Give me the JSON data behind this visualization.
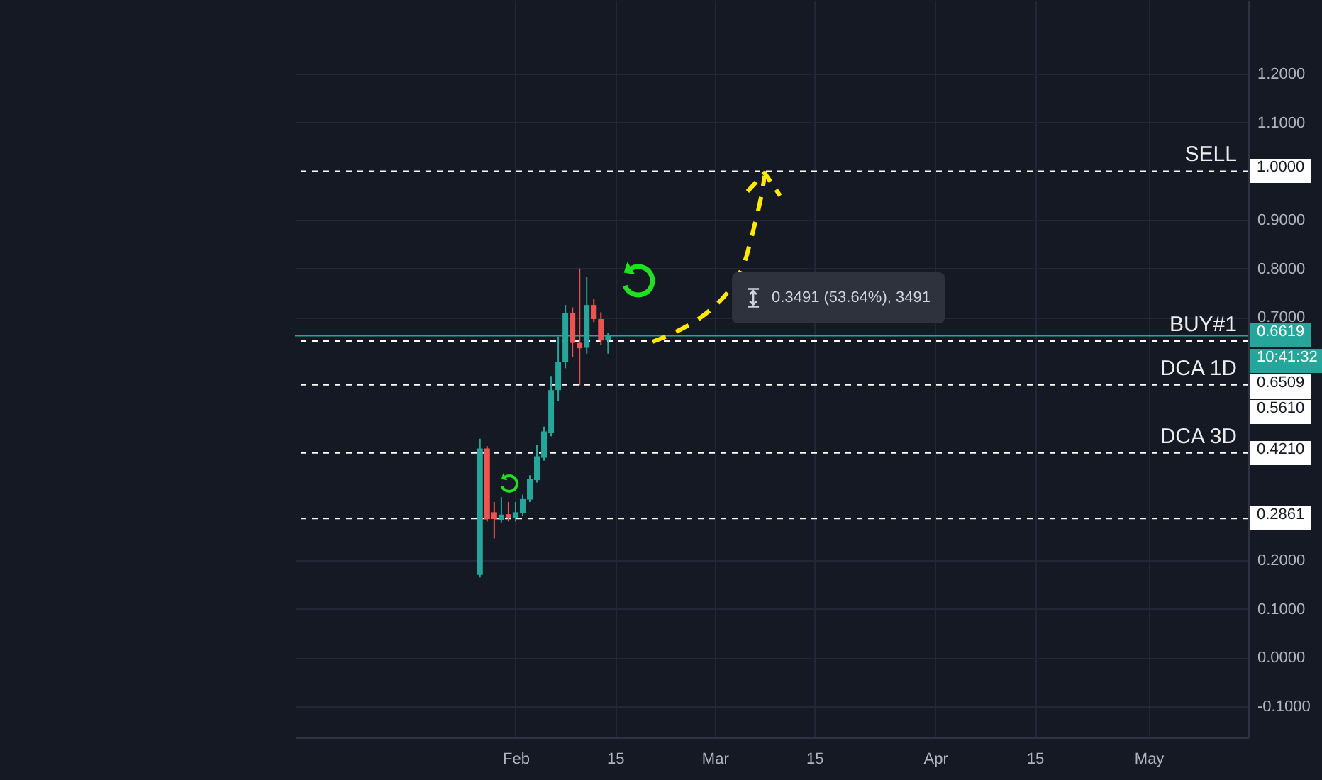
{
  "chart_data": {
    "type": "candlestick",
    "x": [
      "--01-27",
      "--01-28",
      "--01-29",
      "--01-30",
      "--01-31",
      "--02-01",
      "--02-02",
      "--02-03",
      "--02-04",
      "--02-05",
      "--02-06",
      "--02-07",
      "--02-08",
      "--02-09",
      "--02-10",
      "--02-11",
      "--02-12",
      "--02-13",
      "--02-14"
    ],
    "ohlc": [
      [
        0.17,
        0.45,
        0.165,
        0.43
      ],
      [
        0.43,
        0.435,
        0.28,
        0.285
      ],
      [
        0.299,
        0.32,
        0.245,
        0.285
      ],
      [
        0.283,
        0.33,
        0.278,
        0.294
      ],
      [
        0.295,
        0.32,
        0.28,
        0.287
      ],
      [
        0.287,
        0.32,
        0.28,
        0.299
      ],
      [
        0.297,
        0.335,
        0.292,
        0.326
      ],
      [
        0.325,
        0.375,
        0.32,
        0.368
      ],
      [
        0.365,
        0.438,
        0.36,
        0.414
      ],
      [
        0.411,
        0.475,
        0.405,
        0.465
      ],
      [
        0.462,
        0.579,
        0.455,
        0.55
      ],
      [
        0.55,
        0.66,
        0.527,
        0.608
      ],
      [
        0.608,
        0.725,
        0.595,
        0.708
      ],
      [
        0.708,
        0.72,
        0.618,
        0.647
      ],
      [
        0.647,
        0.8,
        0.56,
        0.636
      ],
      [
        0.637,
        0.783,
        0.625,
        0.725
      ],
      [
        0.725,
        0.737,
        0.69,
        0.696
      ],
      [
        0.696,
        0.71,
        0.642,
        0.652
      ],
      [
        0.652,
        0.668,
        0.625,
        0.6619
      ]
    ],
    "colors": [
      "#26a69a",
      "#ef5350",
      "#ef5350",
      "#26a69a",
      "#ef5350",
      "#26a69a",
      "#26a69a",
      "#26a69a",
      "#26a69a",
      "#26a69a",
      "#26a69a",
      "#26a69a",
      "#26a69a",
      "#ef5350",
      "#ef5350",
      "#26a69a",
      "#ef5350",
      "#ef5350",
      "#26a69a"
    ],
    "xlim": [
      "--01-01",
      "--05-15"
    ],
    "xticks": [
      {
        "value": "--02-01",
        "label": "Feb"
      },
      {
        "value": "--02-15",
        "label": "15"
      },
      {
        "value": "--03-01",
        "label": "Mar"
      },
      {
        "value": "--03-15",
        "label": "15"
      },
      {
        "value": "--04-01",
        "label": "Apr"
      },
      {
        "value": "--04-15",
        "label": "15"
      },
      {
        "value": "--05-01",
        "label": "May"
      }
    ],
    "ylim": [
      -0.164,
      1.352
    ],
    "yticks": [
      {
        "value": -0.1,
        "label": "-0.1000"
      },
      {
        "value": 0,
        "label": "0.0000"
      },
      {
        "value": 0.1,
        "label": "0.1000"
      },
      {
        "value": 0.2,
        "label": "0.2000"
      },
      {
        "value": 0.7,
        "label": "0.7000"
      },
      {
        "value": 0.8,
        "label": "0.8000"
      },
      {
        "value": 0.9,
        "label": "0.9000"
      },
      {
        "value": 1.1,
        "label": "1.1000"
      },
      {
        "value": 1.2,
        "label": "1.2000"
      }
    ],
    "grid": true,
    "ref_lines": [
      {
        "axis": "y",
        "value": 1,
        "label": "SELL",
        "color": "#ffffff",
        "line_style": "dashed"
      },
      {
        "axis": "y",
        "value": 0.6619,
        "color": "#26a69a",
        "line_style": "solid"
      },
      {
        "axis": "y",
        "value": 0.6509,
        "label": "BUY#1",
        "color": "#ffffff",
        "line_style": "dashed"
      },
      {
        "axis": "y",
        "value": 0.561,
        "label": "DCA 1D",
        "color": "#ffffff",
        "line_style": "dashed"
      },
      {
        "axis": "y",
        "value": 0.421,
        "label": "DCA 3D",
        "color": "#ffffff",
        "line_style": "dashed"
      },
      {
        "axis": "y",
        "value": 0.2861,
        "color": "#ffffff",
        "line_style": "dashed"
      }
    ],
    "annotations": [
      "0.3491 (53.64%), 3491",
      {
        "text": "1.0000",
        "x": "--05-15",
        "y": 1
      },
      {
        "text": "0.6619",
        "x": "--05-15",
        "y": 0.6619
      },
      {
        "text": "10:41:32",
        "x": "--05-15",
        "y": 0.6619
      },
      {
        "text": "0.6509",
        "x": "--05-15",
        "y": 0.6509
      },
      {
        "text": "0.5610",
        "x": "--05-15",
        "y": 0.561
      },
      {
        "text": "0.4210",
        "x": "--05-15",
        "y": 0.421
      },
      {
        "text": "0.2861",
        "x": "--05-15",
        "y": 0.2861
      }
    ]
  }
}
